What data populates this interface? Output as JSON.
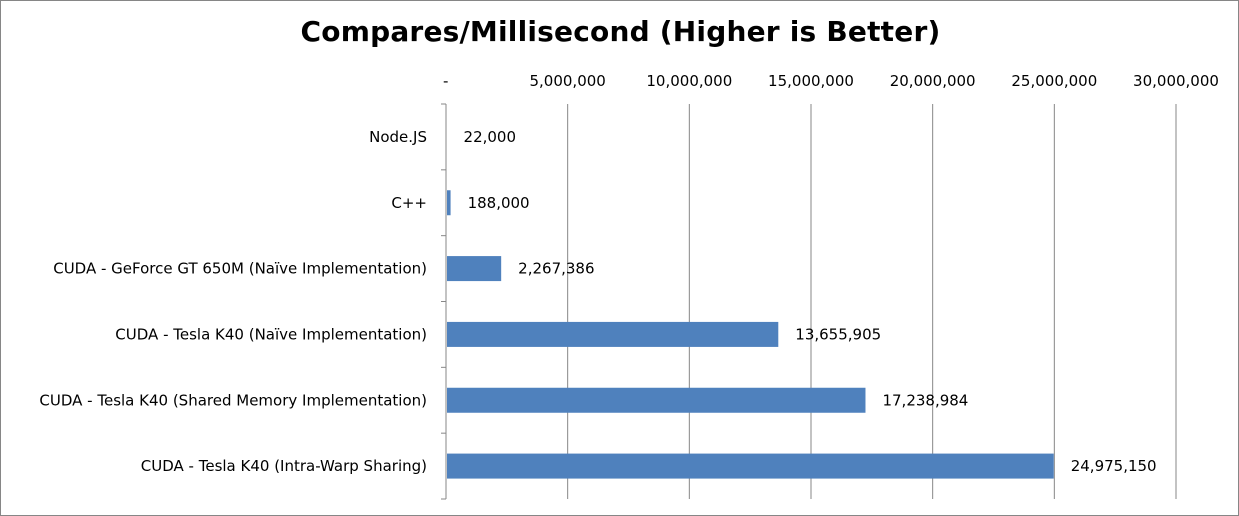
{
  "chart_data": {
    "type": "bar",
    "orientation": "horizontal",
    "title": "Compares/Millisecond (Higher is Better)",
    "xlabel": "",
    "ylabel": "",
    "xlim": [
      0,
      30000000
    ],
    "x_axis_position": "top",
    "x_ticks": [
      0,
      5000000,
      10000000,
      15000000,
      20000000,
      25000000,
      30000000
    ],
    "x_tick_labels": [
      "-",
      "5,000,000",
      "10,000,000",
      "15,000,000",
      "20,000,000",
      "25,000,000",
      "30,000,000"
    ],
    "grid": true,
    "legend": "none",
    "bar_color": "#4F81BD",
    "categories": [
      "Node.JS",
      "C++",
      "CUDA - GeForce GT 650M (Naïve Implementation)",
      "CUDA - Tesla K40 (Naïve Implementation)",
      "CUDA - Tesla K40 (Shared Memory Implementation)",
      "CUDA - Tesla K40 (Intra-Warp Sharing)"
    ],
    "values": [
      22000,
      188000,
      2267386,
      13655905,
      17238984,
      24975150
    ],
    "value_labels": [
      "22,000",
      "188,000",
      "2,267,386",
      "13,655,905",
      "17,238,984",
      "24,975,150"
    ]
  }
}
